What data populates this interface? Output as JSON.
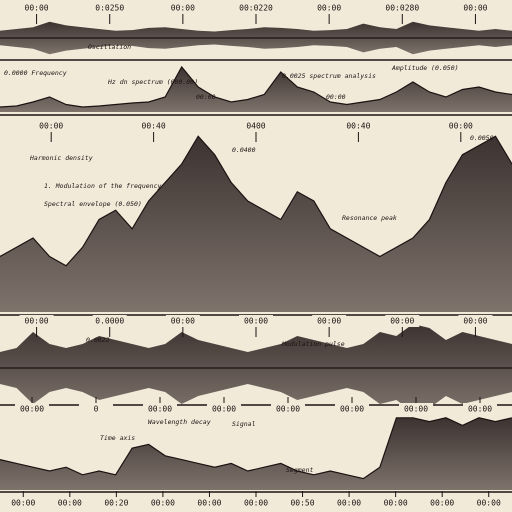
{
  "panels": [
    {
      "style": "mirror",
      "top_labels": [
        "00:00",
        "0:0250",
        "00:00",
        "00:0220",
        "00:00",
        "00:0280",
        "00:00"
      ],
      "annotations": [
        "Oscillation"
      ],
      "envelope": [
        20,
        25,
        30,
        45,
        35,
        30,
        25,
        20,
        22,
        28,
        30,
        25,
        20,
        18,
        22,
        25,
        30,
        28,
        25,
        20,
        22,
        25,
        40,
        30,
        25,
        45,
        35,
        30,
        25,
        20,
        25,
        20
      ]
    },
    {
      "style": "up",
      "annotations": [
        "0.0000 Frequency",
        "Hz dn spectrum (000.00)",
        "0.0025 spectrum analysis",
        "Amplitude (0.050)",
        "00:00",
        "00:00"
      ],
      "envelope": [
        10,
        12,
        20,
        30,
        15,
        10,
        12,
        15,
        18,
        20,
        30,
        90,
        50,
        30,
        20,
        25,
        35,
        80,
        50,
        40,
        20,
        15,
        20,
        25,
        40,
        60,
        40,
        30,
        45,
        50,
        40,
        35
      ]
    },
    {
      "style": "up",
      "top_labels": [
        "00:00",
        "00:40",
        "0400",
        "00:40",
        "00:00"
      ],
      "annotations": [
        "Harmonic density",
        "1. Modulation of the frequency",
        "Spectral envelope (0.050)",
        "0.0400",
        "Resonance peak",
        "0.0050"
      ],
      "envelope": [
        30,
        35,
        40,
        30,
        25,
        35,
        50,
        55,
        45,
        60,
        70,
        80,
        95,
        85,
        70,
        60,
        55,
        50,
        65,
        60,
        45,
        40,
        35,
        30,
        35,
        40,
        50,
        70,
        85,
        90,
        95,
        80
      ]
    },
    {
      "style": "mirror",
      "top_labels": [
        "00:00",
        "0.0000",
        "00:00",
        "00:00",
        "00:00",
        "00:00",
        "00:00"
      ],
      "bottom_labels": [
        "00:00",
        "0",
        "00:00",
        "00:00",
        "00:00",
        "00:00",
        "00:00",
        "00:00"
      ],
      "annotations": [
        "Modulation pulse",
        "0.0022"
      ],
      "envelope": [
        20,
        25,
        45,
        30,
        25,
        30,
        40,
        35,
        30,
        25,
        30,
        45,
        35,
        30,
        25,
        20,
        25,
        30,
        40,
        35,
        30,
        25,
        30,
        45,
        40,
        55,
        50,
        35,
        45,
        40,
        35,
        30
      ]
    },
    {
      "style": "up",
      "bottom_labels": [
        "00:00",
        "00:00",
        "00:20",
        "00:00",
        "00:00",
        "00:00",
        "00:50",
        "00:00",
        "00:00",
        "00:00",
        "00:00"
      ],
      "annotations": [
        "Time axis",
        "Wavelength decay",
        "Signal",
        "Segment"
      ],
      "envelope": [
        40,
        35,
        30,
        25,
        30,
        20,
        25,
        20,
        55,
        60,
        45,
        40,
        35,
        30,
        35,
        25,
        30,
        35,
        25,
        20,
        25,
        20,
        15,
        30,
        95,
        95,
        90,
        95,
        85,
        95,
        90,
        95
      ]
    }
  ]
}
